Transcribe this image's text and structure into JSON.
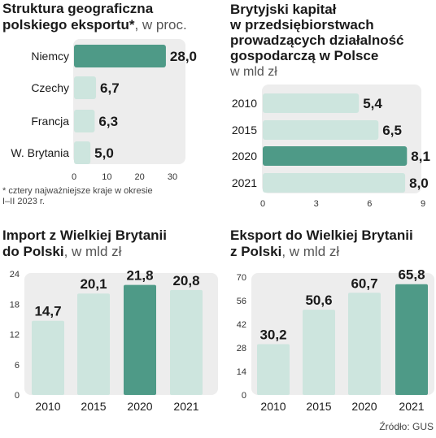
{
  "source": "Źródło: GUS",
  "chart_data": [
    {
      "id": "c1",
      "type": "bar",
      "orientation": "horizontal",
      "title_lines": [
        "Struktura geograficzna",
        "polskiego eksportu*"
      ],
      "unit": ", w proc.",
      "categories": [
        "Niemcy",
        "Czechy",
        "Francja",
        "W. Brytania"
      ],
      "values": [
        28.0,
        6.7,
        6.3,
        5.0
      ],
      "value_labels": [
        "28,0",
        "6,7",
        "6,3",
        "5,0"
      ],
      "highlight_index": 0,
      "xlim": [
        0,
        30
      ],
      "ticks": [
        0,
        10,
        20,
        30
      ],
      "footnote_lines": [
        "* cztery najważniejsze kraje w okresie",
        "I–II 2023 r."
      ]
    },
    {
      "id": "c2",
      "type": "bar",
      "orientation": "horizontal",
      "title_lines": [
        "Brytyjski kapitał",
        "w przedsiębiorstwach",
        "prowadzących działalność",
        "gospodarczą w Polsce"
      ],
      "unit": "w mld zł",
      "categories": [
        "2010",
        "2015",
        "2020",
        "2021"
      ],
      "values": [
        5.4,
        6.5,
        8.1,
        8.0
      ],
      "value_labels": [
        "5,4",
        "6,5",
        "8,1",
        "8,0"
      ],
      "highlight_index": 2,
      "xlim": [
        0,
        9
      ],
      "ticks": [
        0,
        3,
        6,
        9
      ]
    },
    {
      "id": "c3",
      "type": "bar",
      "orientation": "vertical",
      "title_lines": [
        "Import z Wielkiej Brytanii",
        "do Polski"
      ],
      "unit": ", w mld zł",
      "categories": [
        "2010",
        "2015",
        "2020",
        "2021"
      ],
      "values": [
        14.7,
        20.1,
        21.8,
        20.8
      ],
      "value_labels": [
        "14,7",
        "20,1",
        "21,8",
        "20,8"
      ],
      "highlight_index": 2,
      "ylim": [
        0,
        24
      ],
      "ticks": [
        0,
        6,
        12,
        18,
        24
      ]
    },
    {
      "id": "c4",
      "type": "bar",
      "orientation": "vertical",
      "title_lines": [
        "Eksport do Wielkiej Brytanii",
        "z Polski"
      ],
      "unit": ", w mld zł",
      "categories": [
        "2010",
        "2015",
        "2020",
        "2021"
      ],
      "values": [
        30.2,
        50.6,
        60.7,
        65.8
      ],
      "value_labels": [
        "30,2",
        "50,6",
        "60,7",
        "65,8"
      ],
      "highlight_index": 3,
      "ylim": [
        0,
        70
      ],
      "ticks": [
        0,
        14,
        28,
        42,
        56,
        70
      ]
    }
  ],
  "colors": {
    "highlight": "#4e9a87",
    "bar": "#cde5de",
    "panel": "#ededed",
    "text": "#1a1a1a"
  }
}
